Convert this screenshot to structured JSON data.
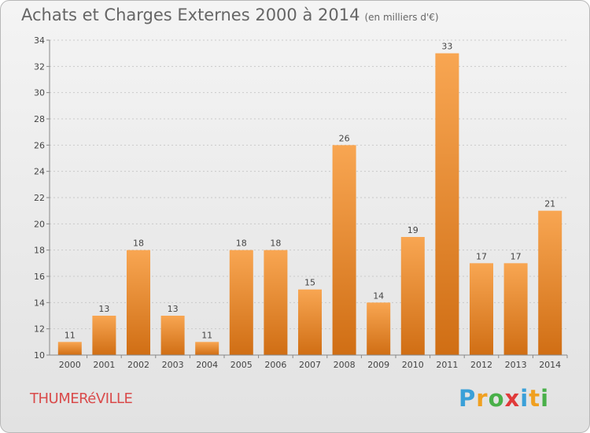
{
  "title": "Achats et Charges Externes 2000 à 2014",
  "subtitle": "(en milliers d'€)",
  "commune": "THUMERéVILLE",
  "logo": {
    "letters": [
      "P",
      "r",
      "o",
      "x",
      "i",
      "t",
      "i"
    ],
    "colors": [
      "#3aa0d8",
      "#f0a020",
      "#49b049",
      "#e03a3a",
      "#3aa0d8",
      "#f0a020",
      "#49b049"
    ]
  },
  "colors": {
    "bar_top": "#f8a652",
    "bar_bottom": "#d06e14",
    "commune": "#d94b4b"
  },
  "chart_data": {
    "type": "bar",
    "categories": [
      "2000",
      "2001",
      "2002",
      "2003",
      "2004",
      "2005",
      "2006",
      "2007",
      "2008",
      "2009",
      "2010",
      "2011",
      "2012",
      "2013",
      "2014"
    ],
    "values": [
      11,
      13,
      18,
      13,
      11,
      18,
      18,
      15,
      26,
      14,
      19,
      33,
      17,
      17,
      21
    ],
    "ylim": [
      10,
      34
    ],
    "yticks": [
      10,
      12,
      14,
      16,
      18,
      20,
      22,
      24,
      26,
      28,
      30,
      32,
      34
    ],
    "grid": true,
    "data_labels": true
  }
}
